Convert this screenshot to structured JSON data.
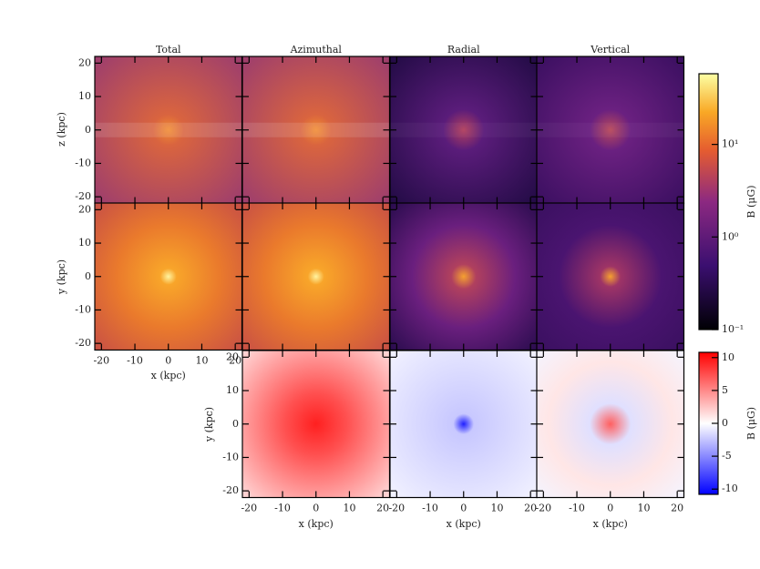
{
  "chart_data": {
    "type": "image",
    "columns": [
      "Total",
      "Azimuthal",
      "Radial",
      "Vertical"
    ],
    "xlim": [
      -22,
      22
    ],
    "ylim": [
      -22,
      22
    ],
    "ticks": [
      -20,
      -10,
      0,
      10,
      20
    ],
    "x_label": "x (kpc)",
    "y_label": "y (kpc)",
    "z_label": "z (kpc)",
    "colorbars": [
      {
        "label": "B (μG)",
        "scale": "log",
        "lim": [
          0.1,
          58
        ],
        "ticks": [
          {
            "value": 0.1,
            "label": "10⁻¹"
          },
          {
            "value": 1,
            "label": "10⁰"
          },
          {
            "value": 10,
            "label": "10¹"
          }
        ]
      },
      {
        "label": "B (μG)",
        "scale": "linear",
        "lim": [
          -10.8,
          10.8
        ],
        "ticks": [
          -10,
          -5,
          0,
          5,
          10
        ]
      }
    ]
  }
}
